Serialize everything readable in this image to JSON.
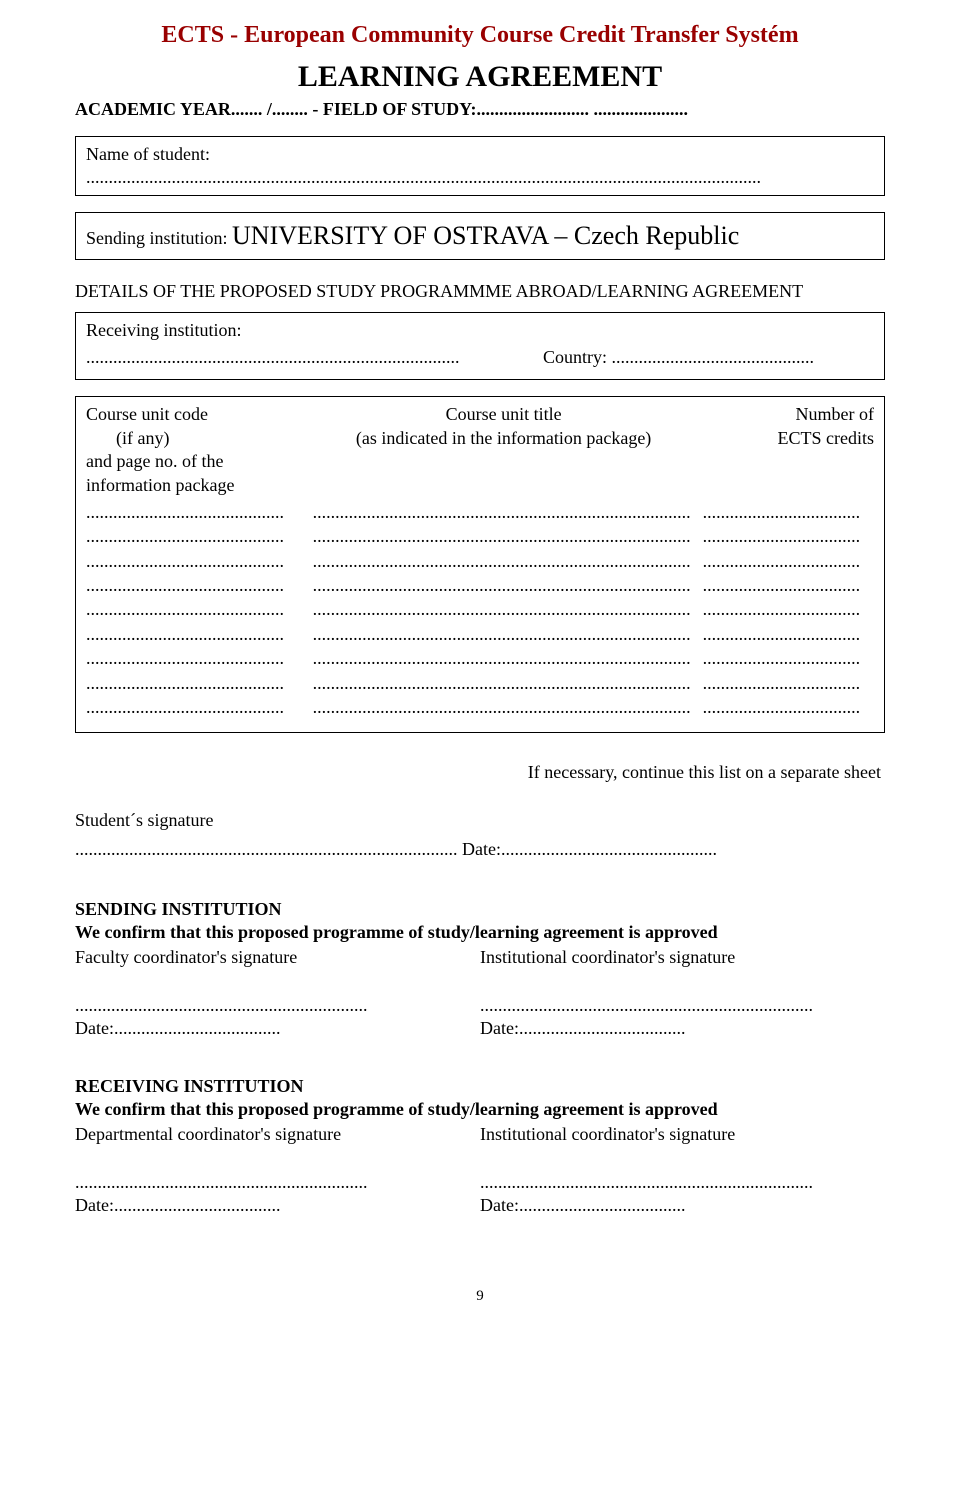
{
  "colors": {
    "title_red": "#990000",
    "text": "#000000",
    "background": "#ffffff",
    "border": "#000000"
  },
  "header": {
    "main_title": "ECTS - European Community Course Credit Transfer Systém",
    "sub_title": "LEARNING AGREEMENT",
    "academic_line": "ACADEMIC YEAR....... /........  -  FIELD OF STUDY:......................... ....................."
  },
  "student_box": {
    "label": "Name of student:",
    "dots": "......................................................................................................................................................"
  },
  "sending_box": {
    "label": "Sending institution:",
    "institution": "UNIVERSITY OF OSTRAVA – Czech Republic"
  },
  "details_heading": "DETAILS OF THE PROPOSED STUDY PROGRAMMME ABROAD/LEARNING AGREEMENT",
  "receiving_box": {
    "label": "Receiving institution:",
    "label_dots": "...................................................................................",
    "country_label": "Country:",
    "country_dots": "............................................."
  },
  "course_table": {
    "col1_header_l1": "Course unit code",
    "col1_header_l2": "(if any)",
    "col1_header_l3": "and page no. of the",
    "col1_header_l4": "information package",
    "col2_header_l1": "Course unit title",
    "col2_header_l2": "(as indicated in the information package)",
    "col3_header_l1": "Number of",
    "col3_header_l2": "ECTS credits",
    "row_count": 9,
    "col1_dots": "............................................",
    "col2_dots": "....................................................................................",
    "col3_dots": "..................................."
  },
  "continue_note": "If necessary, continue this list on a separate sheet",
  "student_sig": {
    "label": "Student´s signature",
    "date_line": "..................................................................................... Date:................................................"
  },
  "sending_inst": {
    "heading": "SENDING INSTITUTION",
    "confirm": "We confirm that this proposed programme of study/learning agreement is approved",
    "left_label": "Faculty coordinator's signature",
    "right_label": "Institutional coordinator's signature",
    "sig_dots_left": ".................................................................",
    "sig_dots_right": "..........................................................................",
    "date_left": "Date:.....................................",
    "date_right": "Date:....................................."
  },
  "receiving_inst": {
    "heading": "RECEIVING INSTITUTION",
    "confirm": "We confirm that this proposed programme of study/learning agreement is approved",
    "left_label": "Departmental coordinator's signature",
    "right_label": "Institutional coordinator's signature",
    "sig_dots_left": ".................................................................",
    "sig_dots_right": "..........................................................................",
    "date_left": "Date:.....................................",
    "date_right": "Date:....................................."
  },
  "page_number": "9"
}
